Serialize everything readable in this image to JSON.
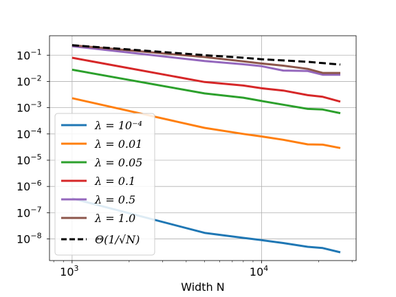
{
  "chart_data": {
    "type": "line",
    "title": "",
    "xlabel": "Width N",
    "ylabel": "",
    "xscale": "log",
    "yscale": "log",
    "xlim": [
      760,
      31500
    ],
    "ylim": [
      1.5e-09,
      0.55
    ],
    "grid": true,
    "legend_position": "left",
    "x_ticks": [
      {
        "value": 1000,
        "base": "10",
        "exp": "3"
      },
      {
        "value": 10000,
        "base": "10",
        "exp": "4"
      }
    ],
    "y_ticks": [
      {
        "value": 1e-08,
        "base": "10",
        "exp": "−8"
      },
      {
        "value": 1e-07,
        "base": "10",
        "exp": "−7"
      },
      {
        "value": 1e-06,
        "base": "10",
        "exp": "−6"
      },
      {
        "value": 1e-05,
        "base": "10",
        "exp": "−5"
      },
      {
        "value": 0.0001,
        "base": "10",
        "exp": "−4"
      },
      {
        "value": 0.001,
        "base": "10",
        "exp": "−3"
      },
      {
        "value": 0.01,
        "base": "10",
        "exp": "−2"
      },
      {
        "value": 0.1,
        "base": "10",
        "exp": "−1"
      }
    ],
    "x": [
      1000,
      5000,
      8000,
      10000,
      13000,
      17500,
      21000,
      26000
    ],
    "series": [
      {
        "name": "λ = 10⁻⁴",
        "color": "#1f77b4",
        "dashed": false,
        "values": [
          3.5e-07,
          1.7e-08,
          1.1e-08,
          9e-09,
          7e-09,
          5e-09,
          4.5e-09,
          3.1e-09
        ]
      },
      {
        "name": "λ = 0.01",
        "color": "#ff7f0e",
        "dashed": false,
        "values": [
          0.0023,
          0.00017,
          0.0001,
          8e-05,
          6e-05,
          4e-05,
          3.9e-05,
          2.9e-05
        ]
      },
      {
        "name": "λ = 0.05",
        "color": "#2ca02c",
        "dashed": false,
        "values": [
          0.028,
          0.0035,
          0.0024,
          0.0018,
          0.0013,
          0.0009,
          0.00085,
          0.00062
        ]
      },
      {
        "name": "λ = 0.1",
        "color": "#d62728",
        "dashed": false,
        "values": [
          0.08,
          0.0095,
          0.007,
          0.0055,
          0.0045,
          0.003,
          0.0026,
          0.0017
        ]
      },
      {
        "name": "λ = 0.5",
        "color": "#9467bd",
        "dashed": false,
        "values": [
          0.22,
          0.06,
          0.045,
          0.038,
          0.026,
          0.025,
          0.018,
          0.018
        ]
      },
      {
        "name": "λ = 1.0",
        "color": "#8c564b",
        "dashed": false,
        "values": [
          0.24,
          0.085,
          0.058,
          0.048,
          0.04,
          0.03,
          0.021,
          0.021
        ]
      },
      {
        "name": "Θ(1/√N)",
        "color": "#000000",
        "dashed": true,
        "values": [
          0.24,
          0.1,
          0.08,
          0.07,
          0.063,
          0.056,
          0.05,
          0.044
        ]
      }
    ]
  }
}
